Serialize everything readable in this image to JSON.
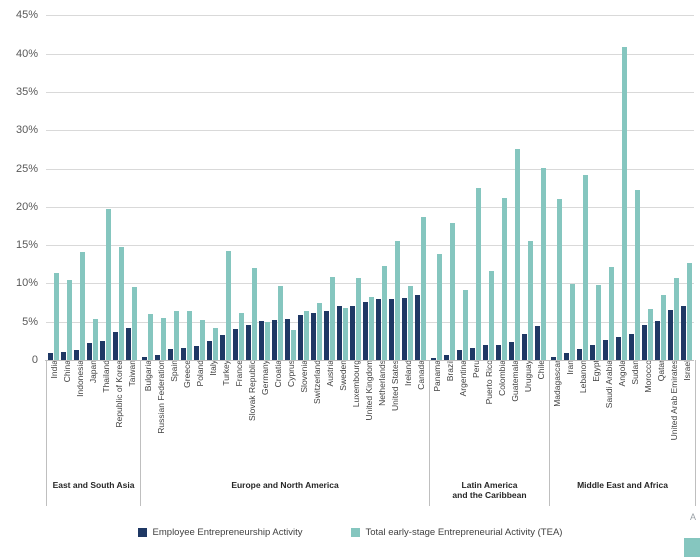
{
  "colors": {
    "eea": "#1F3864",
    "tea": "#85C6BF",
    "gridline": "#d9d9d9",
    "axis": "#bfbfbf",
    "tick_text": "#595959"
  },
  "legend": {
    "eea_label": "Employee Entrepreneurship Activity",
    "tea_label": "Total early-stage Entrepreneurial Activity (TEA)"
  },
  "corner": {
    "text": "A"
  },
  "chart_data": {
    "type": "bar",
    "title": "",
    "xlabel": "",
    "ylabel": "",
    "ylim": [
      0,
      45
    ],
    "yticks": [
      0,
      5,
      10,
      15,
      20,
      25,
      30,
      35,
      40,
      45
    ],
    "ytick_labels": [
      "0",
      "5%",
      "10%",
      "15%",
      "20%",
      "25%",
      "30%",
      "35%",
      "40%",
      "45%"
    ],
    "grid": true,
    "legend_position": "bottom",
    "series": [
      {
        "name": "Employee Entrepreneurship Activity",
        "key": "eea"
      },
      {
        "name": "Total early-stage Entrepreneurial Activity (TEA)",
        "key": "tea"
      }
    ],
    "groups": [
      {
        "region": "East and South Asia",
        "countries": [
          {
            "name": "India",
            "eea": 0.9,
            "tea": 11.4
          },
          {
            "name": "China",
            "eea": 1.0,
            "tea": 10.4
          },
          {
            "name": "Indonesia",
            "eea": 1.3,
            "tea": 14.1
          },
          {
            "name": "Japan",
            "eea": 2.2,
            "tea": 5.3
          },
          {
            "name": "Thailand",
            "eea": 2.5,
            "tea": 19.7
          },
          {
            "name": "Republic of Korea",
            "eea": 3.6,
            "tea": 14.7
          },
          {
            "name": "Taiwan",
            "eea": 4.2,
            "tea": 9.5
          }
        ]
      },
      {
        "region": "Europe and North America",
        "countries": [
          {
            "name": "Bulgaria",
            "eea": 0.4,
            "tea": 6.0
          },
          {
            "name": "Russian Federation",
            "eea": 0.6,
            "tea": 5.5
          },
          {
            "name": "Spain",
            "eea": 1.5,
            "tea": 6.4
          },
          {
            "name": "Greece",
            "eea": 1.6,
            "tea": 6.4
          },
          {
            "name": "Poland",
            "eea": 1.8,
            "tea": 5.2
          },
          {
            "name": "Italy",
            "eea": 2.5,
            "tea": 4.2
          },
          {
            "name": "Turkey",
            "eea": 3.2,
            "tea": 14.2
          },
          {
            "name": "France",
            "eea": 4.0,
            "tea": 6.1
          },
          {
            "name": "Slovak Republic",
            "eea": 4.6,
            "tea": 12.0
          },
          {
            "name": "Germany",
            "eea": 5.1,
            "tea": 5.0
          },
          {
            "name": "Croatia",
            "eea": 5.2,
            "tea": 9.6
          },
          {
            "name": "Cyprus",
            "eea": 5.4,
            "tea": 3.9
          },
          {
            "name": "Slovenia",
            "eea": 5.9,
            "tea": 6.4
          },
          {
            "name": "Switzerland",
            "eea": 6.1,
            "tea": 7.4
          },
          {
            "name": "Austria",
            "eea": 6.4,
            "tea": 10.9
          },
          {
            "name": "Sweden",
            "eea": 7.0,
            "tea": 6.8
          },
          {
            "name": "Luxembourg",
            "eea": 7.1,
            "tea": 10.7
          },
          {
            "name": "United Kingdom",
            "eea": 7.6,
            "tea": 8.2
          },
          {
            "name": "Netherlands",
            "eea": 7.9,
            "tea": 12.3
          },
          {
            "name": "United States",
            "eea": 8.0,
            "tea": 15.6
          },
          {
            "name": "Ireland",
            "eea": 8.1,
            "tea": 9.6
          },
          {
            "name": "Canada",
            "eea": 8.5,
            "tea": 18.7
          }
        ]
      },
      {
        "region": "Latin America\nand the Caribbean",
        "countries": [
          {
            "name": "Panama",
            "eea": 0.3,
            "tea": 13.8
          },
          {
            "name": "Brazil",
            "eea": 0.6,
            "tea": 17.9
          },
          {
            "name": "Argentina",
            "eea": 1.3,
            "tea": 9.1
          },
          {
            "name": "Peru",
            "eea": 1.6,
            "tea": 22.4
          },
          {
            "name": "Puerto Rico",
            "eea": 1.9,
            "tea": 11.6
          },
          {
            "name": "Colombia",
            "eea": 2.0,
            "tea": 21.2
          },
          {
            "name": "Guatemala",
            "eea": 2.4,
            "tea": 27.5
          },
          {
            "name": "Uruguay",
            "eea": 3.4,
            "tea": 15.6
          },
          {
            "name": "Chile",
            "eea": 4.5,
            "tea": 25.1
          }
        ]
      },
      {
        "region": "Middle East and Africa",
        "countries": [
          {
            "name": "Madagascar",
            "eea": 0.4,
            "tea": 21.0
          },
          {
            "name": "Iran",
            "eea": 0.9,
            "tea": 9.9
          },
          {
            "name": "Lebanon",
            "eea": 1.5,
            "tea": 24.1
          },
          {
            "name": "Egypt",
            "eea": 2.0,
            "tea": 9.8
          },
          {
            "name": "Saudi Arabia",
            "eea": 2.6,
            "tea": 12.1
          },
          {
            "name": "Angola",
            "eea": 3.0,
            "tea": 40.8
          },
          {
            "name": "Sudan",
            "eea": 3.4,
            "tea": 22.2
          },
          {
            "name": "Morocco",
            "eea": 4.6,
            "tea": 6.6
          },
          {
            "name": "Qatar",
            "eea": 5.1,
            "tea": 8.5
          },
          {
            "name": "United Arab Emirates",
            "eea": 6.5,
            "tea": 10.7
          },
          {
            "name": "Israel",
            "eea": 7.1,
            "tea": 12.7
          }
        ]
      }
    ]
  }
}
